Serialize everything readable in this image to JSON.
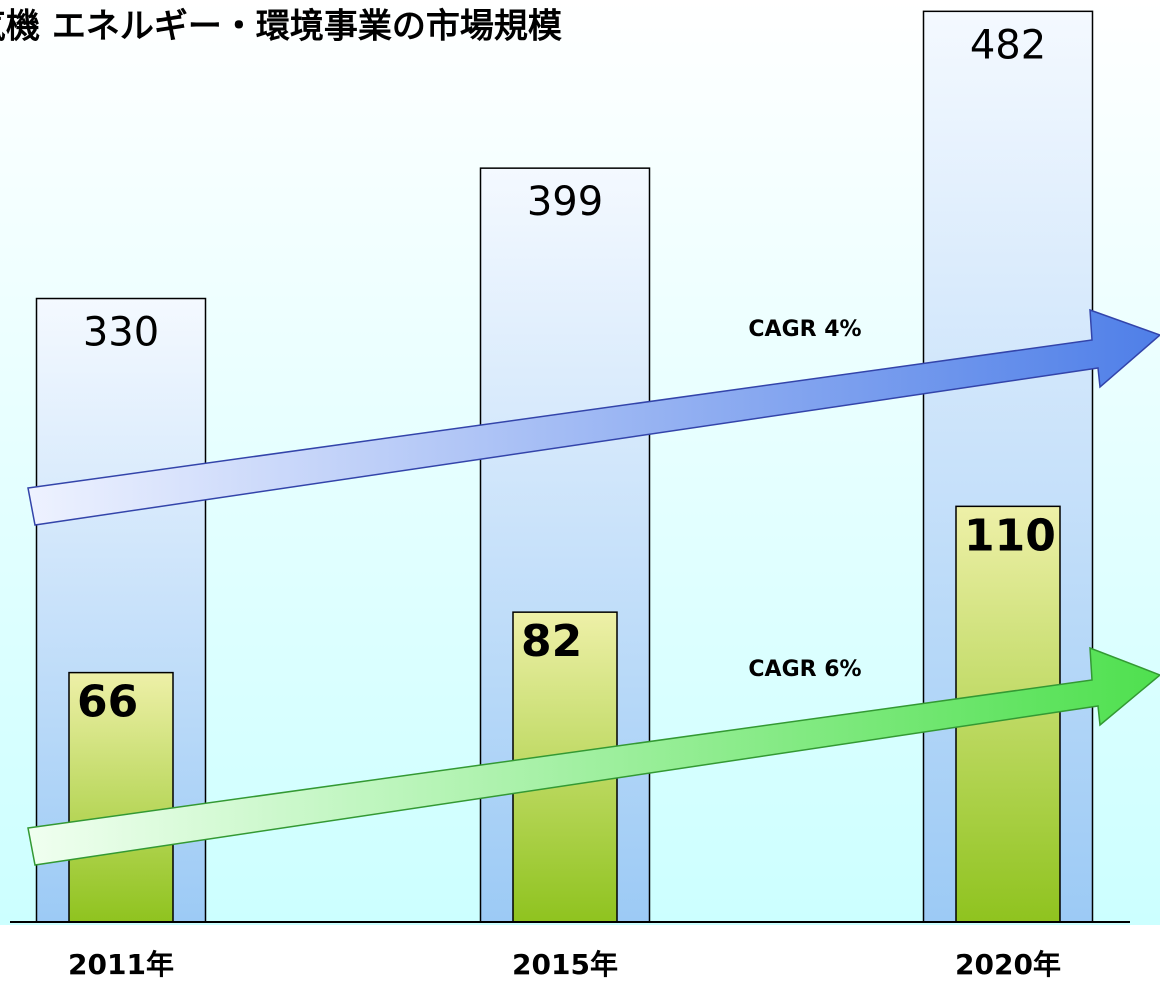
{
  "chart_data": {
    "type": "bar",
    "title": "気機 エネルギー・環境事業の市場規模",
    "unit_label": "）",
    "categories": [
      "2011年",
      "2015年",
      "2020年"
    ],
    "series": [
      {
        "name": null,
        "color": "#a8cef5",
        "values": [
          330,
          399,
          482
        ]
      },
      {
        "name": null,
        "color": "#8fc31f",
        "values": [
          66,
          82,
          110
        ],
        "axis": "y2"
      }
    ],
    "ylim": [
      0,
      488
    ],
    "y2lim": [
      0,
      244
    ],
    "annotations": [
      "CAGR 4%",
      "CAGR 6%"
    ]
  }
}
